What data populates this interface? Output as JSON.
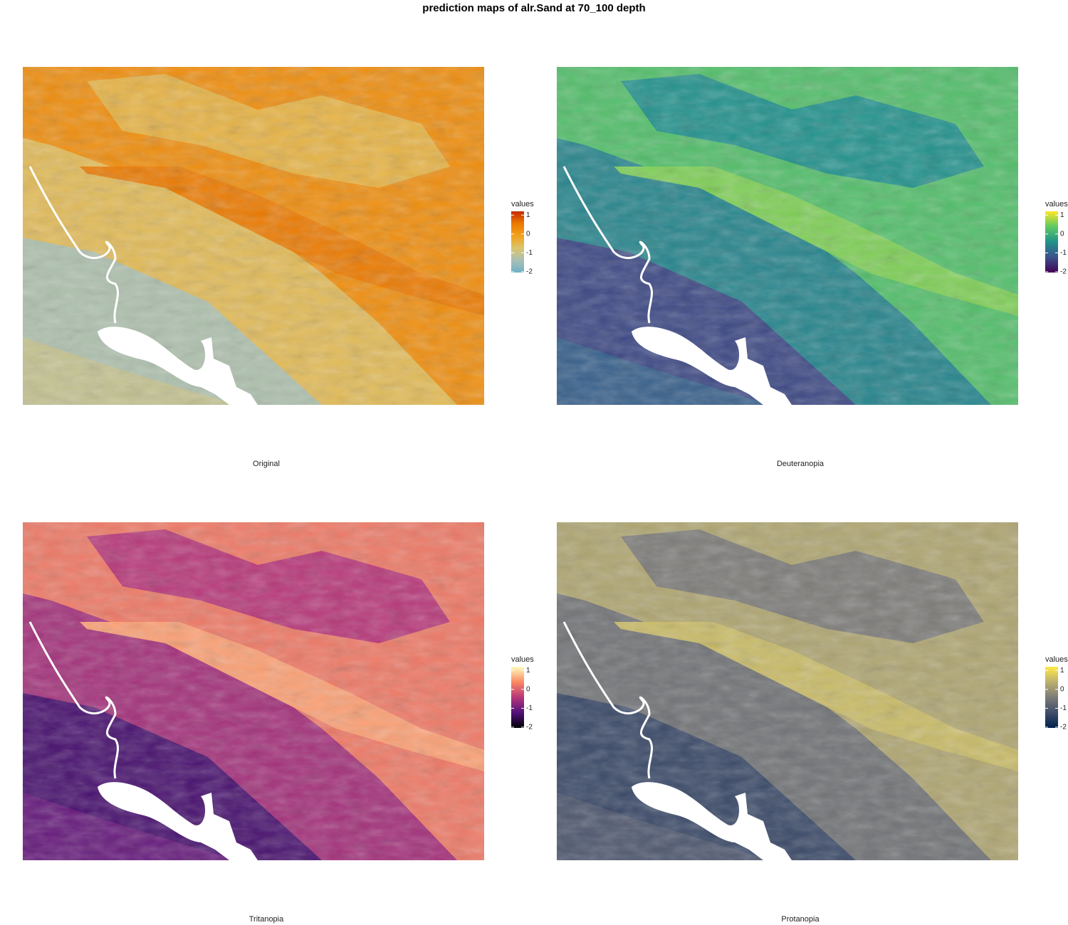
{
  "title": "prediction maps of alr.Sand at 70_100 depth",
  "panels": [
    {
      "caption": "Original",
      "legend_title": "values",
      "lim": [
        -2.04,
        1.2
      ],
      "ticks": [
        -2,
        -1,
        0,
        1
      ],
      "colors": [
        "#6fb0c6",
        "#a9c0b4",
        "#dcc46c",
        "#f2a11c",
        "#ec7a00",
        "#c42a00"
      ]
    },
    {
      "caption": "Deuteranopia",
      "legend_title": "values",
      "lim": [
        -2.04,
        1.2
      ],
      "ticks": [
        -2,
        -1,
        0,
        1
      ],
      "colors": [
        "#440154",
        "#3b528b",
        "#21918c",
        "#5ec962",
        "#fde725"
      ]
    },
    {
      "caption": "Tritanopia",
      "legend_title": "values",
      "lim": [
        -2.04,
        1.2
      ],
      "ticks": [
        -2,
        -1,
        0,
        1
      ],
      "colors": [
        "#000004",
        "#51127c",
        "#b73779",
        "#fc8961",
        "#fcfdbf"
      ]
    },
    {
      "caption": "Protanopia",
      "legend_title": "values",
      "lim": [
        -2.04,
        1.2
      ],
      "ticks": [
        -2,
        -1,
        0,
        1
      ],
      "colors": [
        "#00204d",
        "#414d6b",
        "#7c7b78",
        "#bcaf6f",
        "#ffea46"
      ]
    }
  ]
}
